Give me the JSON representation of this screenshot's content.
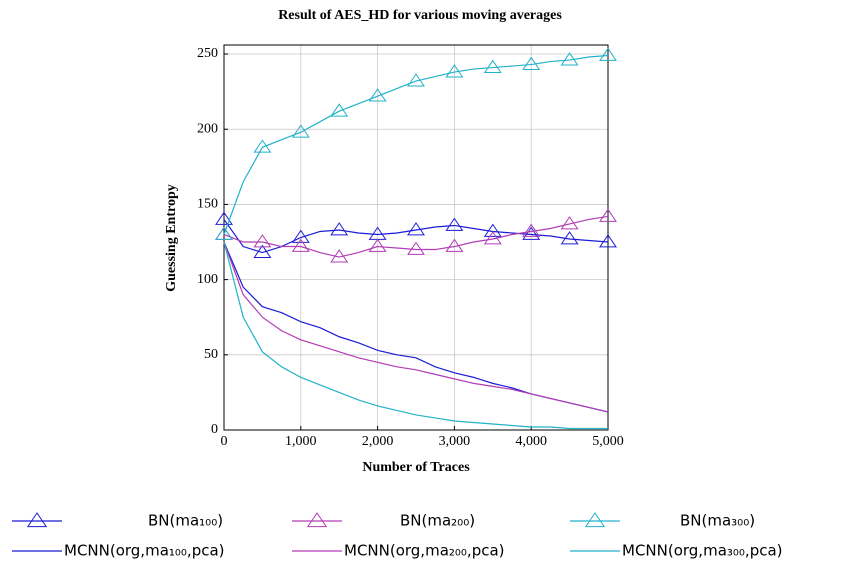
{
  "chart_data": {
    "type": "line",
    "title": "Result of AES_HD for various moving averages",
    "x_label": "Number of Traces",
    "y_label": "Guessing Entropy",
    "x": [
      0,
      250,
      500,
      750,
      1000,
      1250,
      1500,
      1750,
      2000,
      2250,
      2500,
      2750,
      3000,
      3250,
      3500,
      3750,
      4000,
      4250,
      4500,
      4750,
      5000
    ],
    "xlim": [
      0,
      5000
    ],
    "ylim": [
      0,
      256
    ],
    "xticks": [
      0,
      {
        "value": 1000,
        "label": "1,000"
      },
      {
        "value": 2000,
        "label": "2,000"
      },
      {
        "value": 3000,
        "label": "3,000"
      },
      {
        "value": 4000,
        "label": "4,000"
      },
      {
        "value": 5000,
        "label": "5,000"
      }
    ],
    "yticks": [
      0,
      50,
      100,
      150,
      200,
      250
    ],
    "grid": true,
    "legend": "bottom",
    "series": [
      {
        "name": "BN(ma₁₀₀)",
        "color": "#1c1cd6",
        "marker": "triangle",
        "values": [
          140,
          122,
          118,
          122,
          128,
          132,
          133,
          131,
          130,
          131,
          133,
          135,
          136,
          134,
          132,
          131,
          130,
          129,
          127,
          126,
          125
        ]
      },
      {
        "name": "BN(ma₂₀₀)",
        "color": "#b23cb4",
        "marker": "triangle",
        "values": [
          130,
          125,
          125,
          122,
          122,
          118,
          115,
          118,
          122,
          121,
          120,
          120,
          122,
          125,
          127,
          130,
          132,
          134,
          137,
          140,
          142
        ]
      },
      {
        "name": "BN(ma₃₀₀)",
        "color": "#22b2c9",
        "marker": "triangle",
        "values": [
          130,
          165,
          188,
          193,
          198,
          205,
          212,
          217,
          222,
          227,
          232,
          235,
          238,
          240,
          241,
          242,
          243,
          245,
          246,
          248,
          249
        ]
      },
      {
        "name": "MCNN(org,ma₁₀₀,pca)",
        "color": "#1c1cd6",
        "values": [
          125,
          95,
          82,
          78,
          72,
          68,
          62,
          58,
          53,
          50,
          48,
          42,
          38,
          35,
          31,
          28,
          24,
          21,
          18,
          15,
          12
        ]
      },
      {
        "name": "MCNN(org,ma₂₀₀,pca)",
        "color": "#b23cb4",
        "values": [
          125,
          90,
          75,
          66,
          60,
          56,
          52,
          48,
          45,
          42,
          40,
          37,
          34,
          31,
          29,
          27,
          24,
          21,
          18,
          15,
          12
        ]
      },
      {
        "name": "MCNN(org,ma₃₀₀,pca)",
        "color": "#22b2c9",
        "values": [
          125,
          75,
          52,
          42,
          35,
          30,
          25,
          20,
          16,
          13,
          10,
          8,
          6,
          5,
          4,
          3,
          2,
          2,
          1,
          1,
          1
        ]
      }
    ]
  }
}
